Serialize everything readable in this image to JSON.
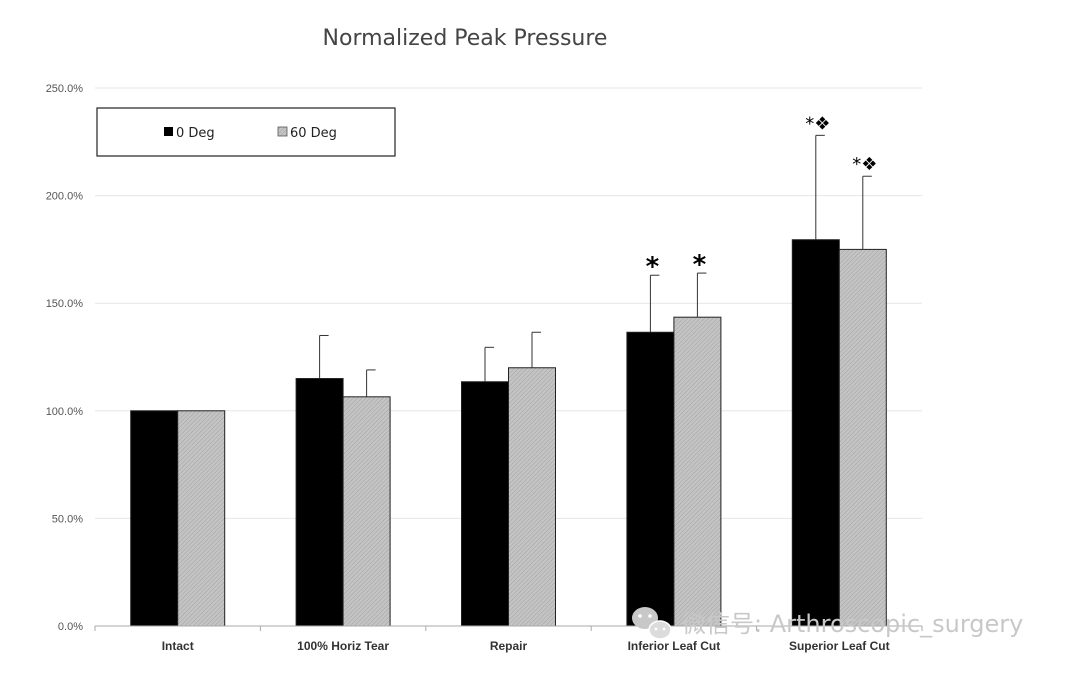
{
  "chart_data": {
    "type": "bar",
    "title": "Normalized Peak Pressure",
    "xlabel": "",
    "ylabel": "",
    "ylim": [
      0,
      250
    ],
    "yticks": [
      "0.0%",
      "50.0%",
      "100.0%",
      "150.0%",
      "200.0%",
      "250.0%"
    ],
    "ytick_values": [
      0,
      50,
      100,
      150,
      200,
      250
    ],
    "grid": true,
    "legend_position": "top-left",
    "categories": [
      "Intact",
      "100% Horiz Tear",
      "Repair",
      "Inferior Leaf Cut",
      "Superior Leaf Cut"
    ],
    "series": [
      {
        "name": "0 Deg",
        "color": "#000000",
        "values": [
          100,
          115,
          113.5,
          136.5,
          179.5
        ],
        "errors": [
          0,
          20,
          16,
          26.5,
          48.5
        ],
        "annotations": [
          "",
          "",
          "",
          "*",
          "*❖"
        ]
      },
      {
        "name": "60 Deg",
        "color": "#c0c0c0",
        "values": [
          100,
          106.5,
          120,
          143.5,
          175
        ],
        "errors": [
          0,
          12.5,
          16.5,
          20.5,
          34
        ],
        "annotations": [
          "",
          "",
          "",
          "*",
          "*❖"
        ]
      }
    ]
  },
  "watermark": {
    "icon": "wechat-icon",
    "text": "微信号: Arthroscopic_surgery"
  }
}
